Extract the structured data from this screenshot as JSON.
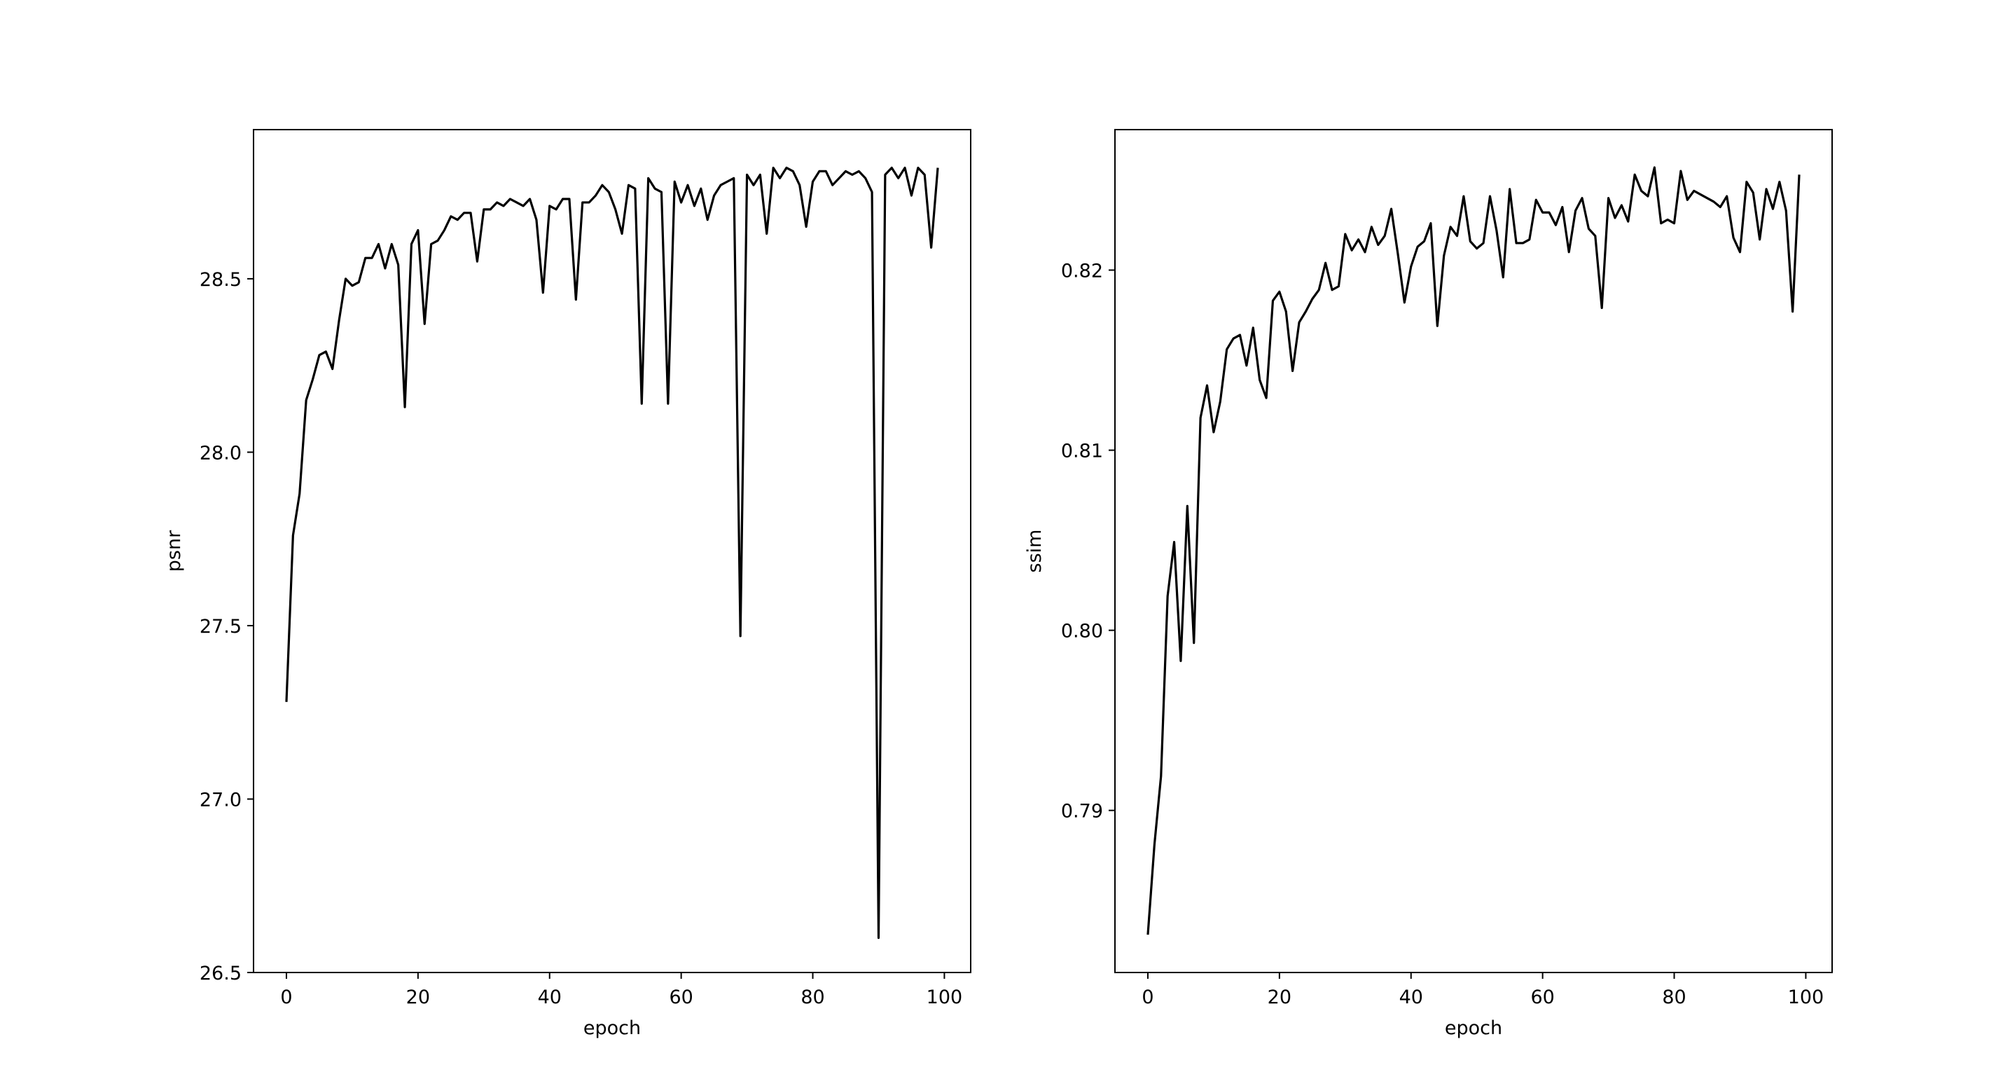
{
  "chart_data": [
    {
      "type": "line",
      "title": "",
      "xlabel": "epoch",
      "ylabel": "psnr",
      "xlim": [
        -5,
        104
      ],
      "ylim": [
        26.5,
        28.93
      ],
      "xticks": [
        0,
        20,
        40,
        60,
        80,
        100
      ],
      "xtick_labels": [
        "0",
        "20",
        "40",
        "60",
        "80",
        "100"
      ],
      "yticks": [
        26.5,
        27.0,
        27.5,
        28.0,
        28.5
      ],
      "ytick_labels": [
        "26.5",
        "27.0",
        "27.5",
        "28.0",
        "28.5"
      ],
      "grid": false,
      "legend": "none",
      "color": "#000000",
      "series": [
        {
          "x": [
            0,
            1,
            2,
            3,
            4,
            5,
            6,
            7,
            8,
            9,
            10,
            11,
            12,
            13,
            14,
            15,
            16,
            17,
            18,
            19,
            20,
            21,
            22,
            23,
            24,
            25,
            26,
            27,
            28,
            29,
            30,
            31,
            32,
            33,
            34,
            35,
            36,
            37,
            38,
            39,
            40,
            41,
            42,
            43,
            44,
            45,
            46,
            47,
            48,
            49,
            50,
            51,
            52,
            53,
            54,
            55,
            56,
            57,
            58,
            59,
            60,
            61,
            62,
            63,
            64,
            65,
            66,
            67,
            68,
            69,
            70,
            71,
            72,
            73,
            74,
            75,
            76,
            77,
            78,
            79,
            80,
            81,
            82,
            83,
            84,
            85,
            86,
            87,
            88,
            89,
            90,
            91,
            92,
            93,
            94,
            95,
            96,
            97,
            98,
            99
          ],
          "values": [
            27.28,
            27.76,
            27.88,
            28.15,
            28.21,
            28.28,
            28.29,
            28.24,
            28.38,
            28.5,
            28.48,
            28.49,
            28.56,
            28.56,
            28.6,
            28.53,
            28.6,
            28.54,
            28.13,
            28.6,
            28.64,
            28.37,
            28.6,
            28.61,
            28.64,
            28.68,
            28.67,
            28.69,
            28.69,
            28.55,
            28.7,
            28.7,
            28.72,
            28.71,
            28.73,
            28.72,
            28.71,
            28.73,
            28.67,
            28.46,
            28.71,
            28.7,
            28.73,
            28.73,
            28.44,
            28.72,
            28.72,
            28.74,
            28.77,
            28.75,
            28.7,
            28.63,
            28.77,
            28.76,
            28.14,
            28.79,
            28.76,
            28.75,
            28.14,
            28.78,
            28.72,
            28.77,
            28.71,
            28.76,
            28.67,
            28.74,
            28.77,
            28.78,
            28.79,
            27.47,
            28.8,
            28.77,
            28.8,
            28.63,
            28.82,
            28.79,
            28.82,
            28.81,
            28.77,
            28.65,
            28.78,
            28.81,
            28.81,
            28.77,
            28.79,
            28.81,
            28.8,
            28.81,
            28.79,
            28.75,
            26.6,
            28.8,
            28.82,
            28.79,
            28.82,
            28.74,
            28.82,
            28.8,
            28.59,
            28.82
          ]
        }
      ]
    },
    {
      "type": "line",
      "title": "",
      "xlabel": "epoch",
      "ylabel": "ssim",
      "xlim": [
        -5,
        104
      ],
      "ylim": [
        0.781,
        0.8278
      ],
      "xticks": [
        0,
        20,
        40,
        60,
        80,
        100
      ],
      "xtick_labels": [
        "0",
        "20",
        "40",
        "60",
        "80",
        "100"
      ],
      "yticks": [
        0.79,
        0.8,
        0.81,
        0.82
      ],
      "ytick_labels": [
        "0.79",
        "0.80",
        "0.81",
        "0.82"
      ],
      "grid": false,
      "legend": "none",
      "color": "#000000",
      "series": [
        {
          "x": [
            0,
            1,
            2,
            3,
            4,
            5,
            6,
            7,
            8,
            9,
            10,
            11,
            12,
            13,
            14,
            15,
            16,
            17,
            18,
            19,
            20,
            21,
            22,
            23,
            24,
            25,
            26,
            27,
            28,
            29,
            30,
            31,
            32,
            33,
            34,
            35,
            36,
            37,
            38,
            39,
            40,
            41,
            42,
            43,
            44,
            45,
            46,
            47,
            48,
            49,
            50,
            51,
            52,
            53,
            54,
            55,
            56,
            57,
            58,
            59,
            60,
            61,
            62,
            63,
            64,
            65,
            66,
            67,
            68,
            69,
            70,
            71,
            72,
            73,
            74,
            75,
            76,
            77,
            78,
            79,
            80,
            81,
            82,
            83,
            84,
            85,
            86,
            87,
            88,
            89,
            90,
            91,
            92,
            93,
            94,
            95,
            96,
            97,
            98,
            99
          ],
          "values": [
            0.7831,
            0.7881,
            0.7919,
            0.8019,
            0.8049,
            0.7983,
            0.8069,
            0.7993,
            0.8118,
            0.8136,
            0.811,
            0.8127,
            0.8156,
            0.8162,
            0.8164,
            0.8147,
            0.8168,
            0.8139,
            0.8129,
            0.8183,
            0.8188,
            0.8177,
            0.8144,
            0.8171,
            0.8177,
            0.8184,
            0.8189,
            0.8204,
            0.8189,
            0.8191,
            0.822,
            0.8211,
            0.8217,
            0.821,
            0.8224,
            0.8214,
            0.8219,
            0.8234,
            0.8209,
            0.8182,
            0.8202,
            0.8213,
            0.8216,
            0.8226,
            0.8169,
            0.8208,
            0.8224,
            0.8219,
            0.8241,
            0.8216,
            0.8212,
            0.8215,
            0.8241,
            0.8222,
            0.8196,
            0.8245,
            0.8215,
            0.8215,
            0.8217,
            0.8239,
            0.8232,
            0.8232,
            0.8225,
            0.8235,
            0.821,
            0.8233,
            0.824,
            0.8223,
            0.8219,
            0.8179,
            0.824,
            0.8229,
            0.8236,
            0.8227,
            0.8253,
            0.8244,
            0.8241,
            0.8257,
            0.8226,
            0.8228,
            0.8226,
            0.8255,
            0.8239,
            0.8244,
            0.8242,
            0.824,
            0.8238,
            0.8235,
            0.8241,
            0.8218,
            0.821,
            0.8249,
            0.8243,
            0.8217,
            0.8245,
            0.8234,
            0.8249,
            0.8233,
            0.8177,
            0.8253
          ]
        }
      ]
    }
  ]
}
